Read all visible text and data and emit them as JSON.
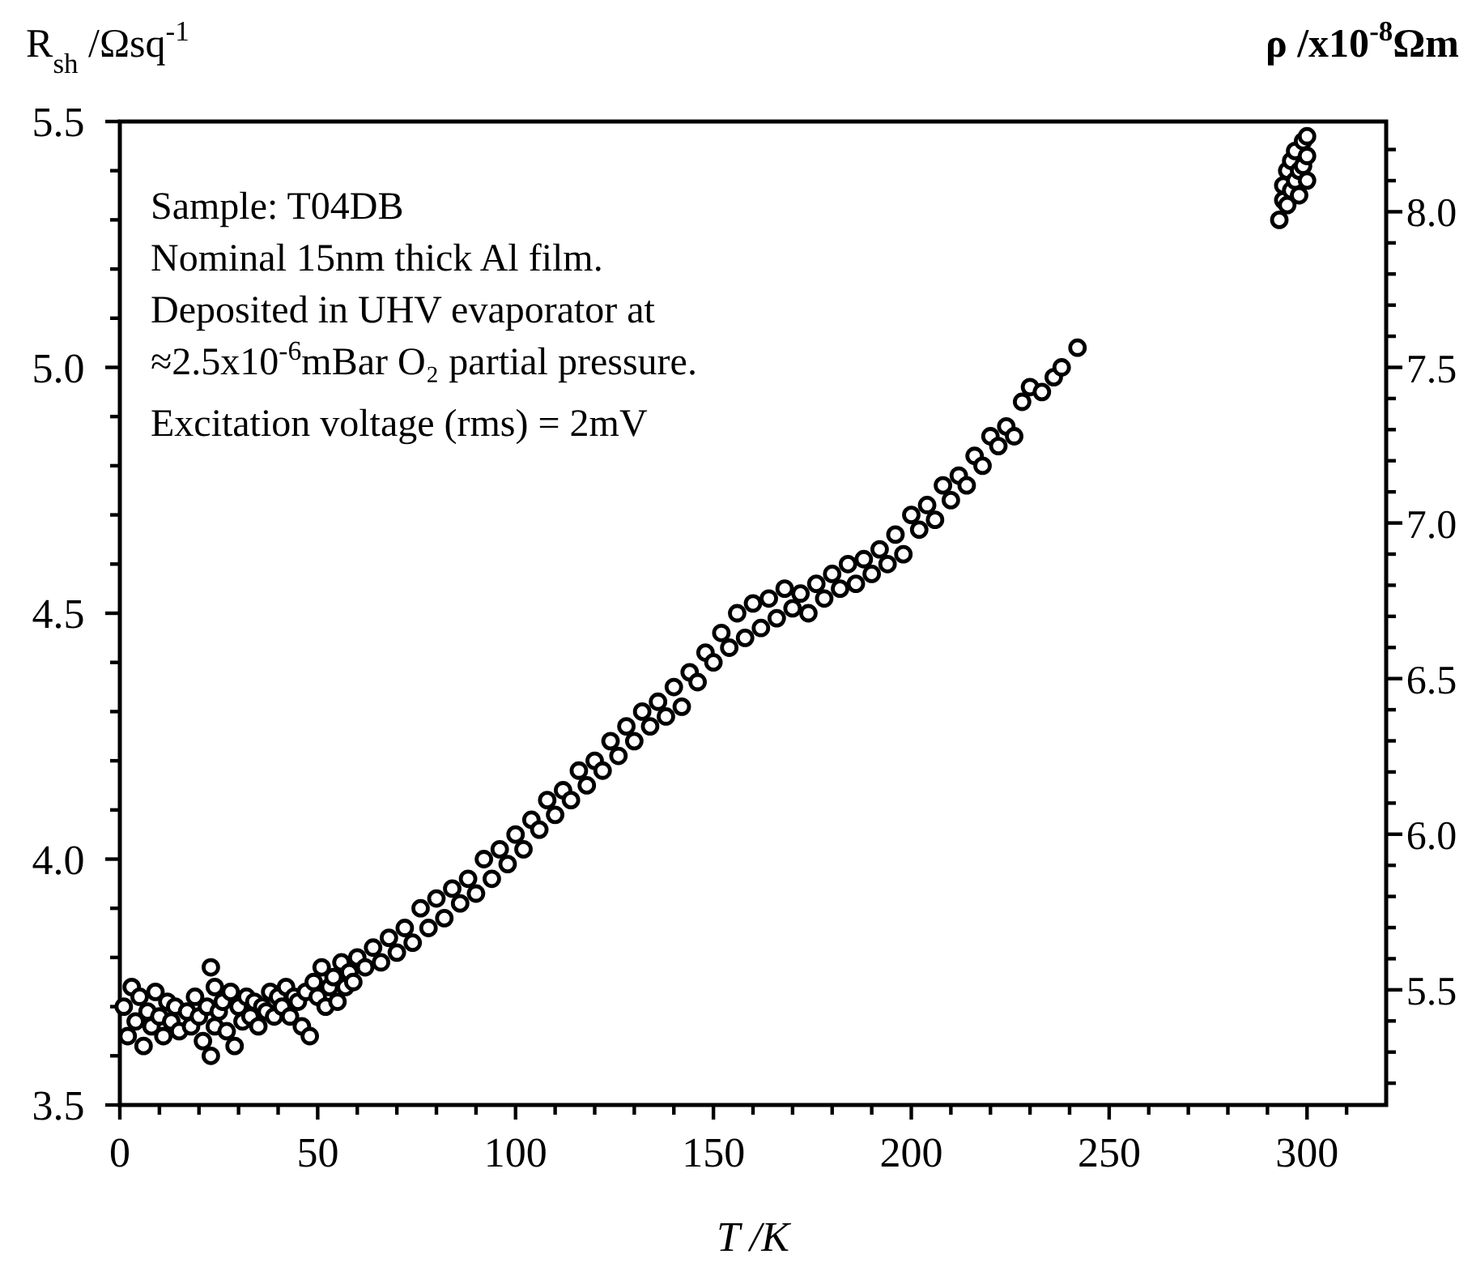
{
  "chart_data": {
    "type": "scatter",
    "xlabel": "T /K",
    "ylabel": "R$_{sh}$ /Ωsq$^{-1}$",
    "y2label": "ρ /x10$^{-8}$Ωm",
    "annotations": [
      "Sample: T04DB",
      "Nominal 15nm thick Al film.",
      "Deposited in UHV evaporator at",
      "≈2.5x10$^{-6}$mBar O₂ partial pressure.",
      "Excitation voltage (rms) = 2mV"
    ],
    "marker": "circle",
    "grid": false,
    "xlim": [
      0,
      320
    ],
    "ylim": [
      3.5,
      5.5
    ],
    "y2lim": [
      5.13,
      8.29
    ],
    "xticks": [
      0,
      {
        "value": 10,
        "label": null
      },
      {
        "value": 20,
        "label": null
      },
      {
        "value": 30,
        "label": null
      },
      {
        "value": 40,
        "label": null
      },
      50,
      {
        "value": 60,
        "label": null
      },
      {
        "value": 70,
        "label": null
      },
      {
        "value": 80,
        "label": null
      },
      {
        "value": 90,
        "label": null
      },
      100,
      {
        "value": 110,
        "label": null
      },
      {
        "value": 120,
        "label": null
      },
      {
        "value": 130,
        "label": null
      },
      {
        "value": 140,
        "label": null
      },
      150,
      {
        "value": 160,
        "label": null
      },
      {
        "value": 170,
        "label": null
      },
      {
        "value": 180,
        "label": null
      },
      {
        "value": 190,
        "label": null
      },
      200,
      {
        "value": 210,
        "label": null
      },
      {
        "value": 220,
        "label": null
      },
      {
        "value": 230,
        "label": null
      },
      {
        "value": 240,
        "label": null
      },
      250,
      {
        "value": 260,
        "label": null
      },
      {
        "value": 270,
        "label": null
      },
      {
        "value": 280,
        "label": null
      },
      {
        "value": 290,
        "label": null
      },
      300,
      {
        "value": 310,
        "label": null
      }
    ],
    "yticks": [
      {
        "value": 3.5,
        "label": "3.5"
      },
      {
        "value": 3.6,
        "label": null
      },
      {
        "value": 3.7,
        "label": null
      },
      {
        "value": 3.8,
        "label": null
      },
      {
        "value": 3.9,
        "label": null
      },
      {
        "value": 4.0,
        "label": "4.0"
      },
      {
        "value": 4.1,
        "label": null
      },
      {
        "value": 4.2,
        "label": null
      },
      {
        "value": 4.3,
        "label": null
      },
      {
        "value": 4.4,
        "label": null
      },
      4.5,
      {
        "value": 4.6,
        "label": null
      },
      {
        "value": 4.7,
        "label": null
      },
      {
        "value": 4.8,
        "label": null
      },
      {
        "value": 4.9,
        "label": null
      },
      {
        "value": 5.0,
        "label": "5.0"
      },
      {
        "value": 5.1,
        "label": null
      },
      {
        "value": 5.2,
        "label": null
      },
      {
        "value": 5.3,
        "label": null
      },
      {
        "value": 5.4,
        "label": null
      },
      5.5
    ],
    "y2ticks": [
      {
        "value": 5.2,
        "label": null
      },
      {
        "value": 5.3,
        "label": null
      },
      {
        "value": 5.4,
        "label": null
      },
      5.5,
      {
        "value": 5.6,
        "label": null
      },
      {
        "value": 5.7,
        "label": null
      },
      {
        "value": 5.8,
        "label": null
      },
      {
        "value": 5.9,
        "label": null
      },
      {
        "value": 6.0,
        "label": "6.0"
      },
      {
        "value": 6.1,
        "label": null
      },
      {
        "value": 6.2,
        "label": null
      },
      {
        "value": 6.3,
        "label": null
      },
      {
        "value": 6.4,
        "label": null
      },
      6.5,
      {
        "value": 6.6,
        "label": null
      },
      {
        "value": 6.7,
        "label": null
      },
      {
        "value": 6.8,
        "label": null
      },
      {
        "value": 6.9,
        "label": null
      },
      {
        "value": 7.0,
        "label": "7.0"
      },
      {
        "value": 7.1,
        "label": null
      },
      {
        "value": 7.2,
        "label": null
      },
      {
        "value": 7.3,
        "label": null
      },
      {
        "value": 7.4,
        "label": null
      },
      7.5,
      {
        "value": 7.6,
        "label": null
      },
      {
        "value": 7.7,
        "label": null
      },
      {
        "value": 7.8,
        "label": null
      },
      {
        "value": 7.9,
        "label": null
      },
      {
        "value": 8.0,
        "label": "8.0"
      },
      {
        "value": 8.1,
        "label": null
      },
      {
        "value": 8.2,
        "label": null
      }
    ],
    "series": [
      {
        "color": "#000000",
        "x": [
          1,
          2,
          3,
          4,
          5,
          6,
          7,
          8,
          9,
          10,
          11,
          12,
          13,
          14,
          15,
          17,
          18,
          19,
          20,
          21,
          22,
          23,
          23,
          24,
          24,
          25,
          26,
          27,
          28,
          29,
          30,
          31,
          32,
          33,
          34,
          35,
          36,
          37,
          38,
          39,
          40,
          41,
          42,
          43,
          44,
          45,
          46,
          47,
          48,
          49,
          50,
          51,
          52,
          53,
          54,
          55,
          56,
          57,
          58,
          59,
          60,
          62,
          64,
          66,
          68,
          70,
          72,
          74,
          76,
          78,
          80,
          82,
          84,
          86,
          88,
          90,
          92,
          94,
          96,
          98,
          100,
          102,
          104,
          106,
          108,
          110,
          112,
          114,
          116,
          118,
          120,
          122,
          124,
          126,
          128,
          130,
          132,
          134,
          136,
          138,
          140,
          142,
          144,
          146,
          148,
          150,
          152,
          154,
          156,
          158,
          160,
          162,
          164,
          166,
          168,
          170,
          172,
          174,
          176,
          178,
          180,
          182,
          184,
          186,
          188,
          190,
          192,
          194,
          196,
          198,
          200,
          202,
          204,
          206,
          208,
          210,
          212,
          214,
          216,
          218,
          220,
          222,
          224,
          226,
          228,
          230,
          233,
          236,
          238,
          242,
          293,
          294,
          294,
          295,
          295,
          296,
          296,
          297,
          297,
          298,
          298,
          299,
          299,
          300,
          300,
          300
        ],
        "values": [
          3.7,
          3.64,
          3.74,
          3.67,
          3.72,
          3.62,
          3.69,
          3.66,
          3.73,
          3.68,
          3.64,
          3.71,
          3.67,
          3.7,
          3.65,
          3.69,
          3.66,
          3.72,
          3.68,
          3.63,
          3.7,
          3.6,
          3.78,
          3.66,
          3.74,
          3.69,
          3.71,
          3.65,
          3.73,
          3.62,
          3.7,
          3.67,
          3.72,
          3.68,
          3.71,
          3.66,
          3.7,
          3.69,
          3.73,
          3.68,
          3.72,
          3.7,
          3.74,
          3.68,
          3.72,
          3.71,
          3.66,
          3.73,
          3.64,
          3.75,
          3.72,
          3.78,
          3.7,
          3.74,
          3.76,
          3.71,
          3.79,
          3.74,
          3.77,
          3.75,
          3.8,
          3.78,
          3.82,
          3.79,
          3.84,
          3.81,
          3.86,
          3.83,
          3.9,
          3.86,
          3.92,
          3.88,
          3.94,
          3.91,
          3.96,
          3.93,
          4.0,
          3.96,
          4.02,
          3.99,
          4.05,
          4.02,
          4.08,
          4.06,
          4.12,
          4.09,
          4.14,
          4.12,
          4.18,
          4.15,
          4.2,
          4.18,
          4.24,
          4.21,
          4.27,
          4.24,
          4.3,
          4.27,
          4.32,
          4.29,
          4.35,
          4.31,
          4.38,
          4.36,
          4.42,
          4.4,
          4.46,
          4.43,
          4.5,
          4.45,
          4.52,
          4.47,
          4.53,
          4.49,
          4.55,
          4.51,
          4.54,
          4.5,
          4.56,
          4.53,
          4.58,
          4.55,
          4.6,
          4.56,
          4.61,
          4.58,
          4.63,
          4.6,
          4.66,
          4.62,
          4.7,
          4.67,
          4.72,
          4.69,
          4.76,
          4.73,
          4.78,
          4.76,
          4.82,
          4.8,
          4.86,
          4.84,
          4.88,
          4.86,
          4.93,
          4.96,
          4.95,
          4.98,
          5.0,
          5.04,
          5.3,
          5.34,
          5.37,
          5.33,
          5.4,
          5.36,
          5.42,
          5.38,
          5.44,
          5.4,
          5.35,
          5.46,
          5.41,
          5.47,
          5.43,
          5.38
        ]
      }
    ]
  }
}
